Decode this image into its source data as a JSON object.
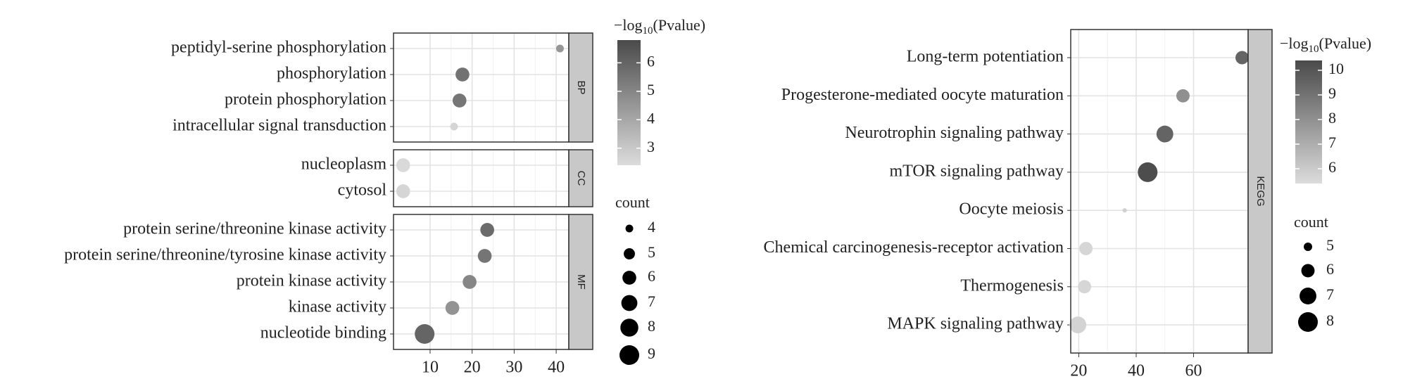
{
  "chart_data": [
    {
      "type": "dot",
      "facets": [
        {
          "label": "BP",
          "categories": [
            "peptidyl-serine phosphorylation",
            "phosphorylation",
            "protein phosphorylation",
            "intracellular signal transduction"
          ],
          "values": [
            40.9,
            17.7,
            17,
            15.7
          ],
          "counts": [
            4,
            6,
            6,
            4
          ],
          "neglog10p": [
            4.5,
            5.6,
            5.5,
            2.6
          ]
        },
        {
          "label": "CC",
          "categories": [
            "nucleoplasm",
            "cytosol"
          ],
          "values": [
            3.6,
            3.6
          ],
          "counts": [
            6,
            6
          ],
          "neglog10p": [
            2.5,
            2.6
          ]
        },
        {
          "label": "MF",
          "categories": [
            "protein serine/threonine kinase activity",
            "protein serine/threonine/tyrosine kinase activity",
            "protein kinase activity",
            "kinase activity",
            "nucleotide binding"
          ],
          "values": [
            23.6,
            23,
            19.4,
            15.3,
            8.7
          ],
          "counts": [
            6,
            6,
            6,
            6,
            9
          ],
          "neglog10p": [
            5.8,
            5.5,
            5,
            4.6,
            6
          ]
        }
      ],
      "xlim": [
        1.3,
        43
      ],
      "xticks": [
        10,
        20,
        30,
        40
      ],
      "grid": true,
      "color_legend": {
        "title_main": "−log",
        "title_sub": "10",
        "title_tail": "(Pvalue)",
        "lim": [
          2.4,
          6.8
        ],
        "ticks": [
          3,
          4,
          5,
          6
        ],
        "low": "#dcdcdc",
        "high": "#4a4a4a"
      },
      "size_legend": {
        "title": "count",
        "values": [
          4,
          5,
          6,
          7,
          8,
          9
        ]
      }
    },
    {
      "type": "dot",
      "facets": [
        {
          "label": "KEGG",
          "categories": [
            "Long-term potentiation",
            "Progesterone-mediated oocyte maturation",
            "Neurotrophin signaling pathway",
            "mTOR signaling pathway",
            "Oocyte meiosis",
            "Chemical carcinogenesis-receptor activation",
            "Thermogenesis",
            "MAPK signaling pathway"
          ],
          "values": [
            76.9,
            56.3,
            50,
            44,
            36,
            22.5,
            22,
            19.7
          ],
          "counts": [
            6,
            6,
            7,
            8,
            4.5,
            6,
            6,
            7
          ],
          "neglog10p": [
            9.5,
            8,
            9.5,
            10.3,
            5.8,
            5.6,
            5.6,
            5.7
          ]
        }
      ],
      "xlim": [
        17.2,
        79
      ],
      "xticks": [
        20,
        40,
        60
      ],
      "grid": true,
      "color_legend": {
        "title_main": "−log",
        "title_sub": "10",
        "title_tail": "(Pvalue)",
        "lim": [
          5.4,
          10.4
        ],
        "ticks": [
          6,
          7,
          8,
          9,
          10
        ],
        "low": "#dcdcdc",
        "high": "#4a4a4a"
      },
      "size_legend": {
        "title": "count",
        "values": [
          5,
          6,
          7,
          8
        ]
      }
    }
  ]
}
